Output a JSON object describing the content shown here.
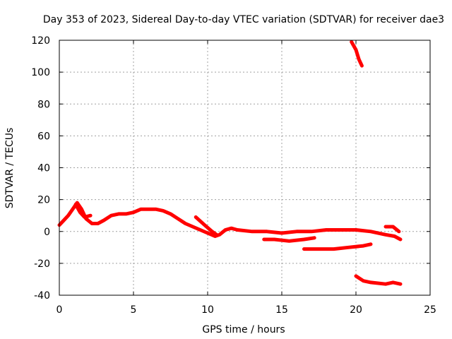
{
  "chart_data": {
    "type": "line",
    "title": "Day 353 of 2023, Sidereal Day-to-day VTEC variation (SDTVAR) for receiver dae3",
    "xlabel": "GPS time / hours",
    "ylabel": "SDTVAR / TECUs",
    "xlim": [
      0,
      25
    ],
    "ylim": [
      -40,
      120
    ],
    "xticks": [
      0,
      5,
      10,
      15,
      20,
      25
    ],
    "yticks": [
      -40,
      -20,
      0,
      20,
      40,
      60,
      80,
      100,
      120
    ],
    "grid": true,
    "color": "#ff0000",
    "series": [
      {
        "name": "main",
        "points": [
          [
            0,
            4
          ],
          [
            0.3,
            7
          ],
          [
            0.6,
            10
          ],
          [
            0.9,
            14
          ],
          [
            1.2,
            18
          ],
          [
            1.5,
            14
          ],
          [
            1.8,
            8
          ],
          [
            2.2,
            5
          ],
          [
            2.6,
            5
          ],
          [
            3.0,
            7
          ],
          [
            3.5,
            10
          ],
          [
            4.0,
            11
          ],
          [
            4.5,
            11
          ],
          [
            5.0,
            12
          ],
          [
            5.5,
            14
          ],
          [
            6.0,
            14
          ],
          [
            6.5,
            14
          ],
          [
            7.0,
            13
          ],
          [
            7.5,
            11
          ],
          [
            8.0,
            8
          ],
          [
            8.5,
            5
          ],
          [
            9.0,
            3
          ],
          [
            9.5,
            1
          ],
          [
            10.0,
            -1
          ],
          [
            10.5,
            -3
          ],
          [
            10.8,
            -2
          ],
          [
            11.2,
            1
          ],
          [
            11.6,
            2
          ],
          [
            12.0,
            1
          ],
          [
            13.0,
            0
          ],
          [
            14.0,
            0
          ],
          [
            15.0,
            -1
          ],
          [
            16.0,
            0
          ],
          [
            17.0,
            0
          ],
          [
            18.0,
            1
          ],
          [
            19.0,
            1
          ],
          [
            20.0,
            1
          ],
          [
            21.0,
            0
          ],
          [
            22.0,
            -2
          ],
          [
            22.6,
            -3
          ],
          [
            23.0,
            -5
          ]
        ]
      },
      {
        "name": "hump-1",
        "points": [
          [
            1.1,
            17
          ],
          [
            1.4,
            12
          ],
          [
            1.7,
            9
          ],
          [
            2.1,
            10
          ]
        ]
      },
      {
        "name": "segment-9h",
        "points": [
          [
            9.2,
            9
          ],
          [
            9.8,
            4
          ],
          [
            10.3,
            0
          ],
          [
            10.6,
            -2
          ]
        ]
      },
      {
        "name": "segment-14h",
        "points": [
          [
            13.8,
            -5
          ],
          [
            14.5,
            -5
          ],
          [
            15.5,
            -6
          ],
          [
            16.5,
            -5
          ],
          [
            17.2,
            -4
          ]
        ]
      },
      {
        "name": "segment-17h",
        "points": [
          [
            16.5,
            -11
          ],
          [
            17.5,
            -11
          ],
          [
            18.5,
            -11
          ],
          [
            19.5,
            -10
          ],
          [
            20.5,
            -9
          ],
          [
            21.0,
            -8
          ]
        ]
      },
      {
        "name": "segment-22h",
        "points": [
          [
            22.0,
            3
          ],
          [
            22.5,
            3
          ],
          [
            22.9,
            0
          ]
        ]
      },
      {
        "name": "upper",
        "points": [
          [
            19.7,
            119
          ],
          [
            20.0,
            114
          ],
          [
            20.2,
            108
          ],
          [
            20.4,
            104
          ]
        ]
      },
      {
        "name": "lower",
        "points": [
          [
            20.0,
            -28
          ],
          [
            20.5,
            -31
          ],
          [
            21.0,
            -32
          ],
          [
            22.0,
            -33
          ],
          [
            22.5,
            -32
          ],
          [
            23.0,
            -33
          ]
        ]
      }
    ]
  }
}
